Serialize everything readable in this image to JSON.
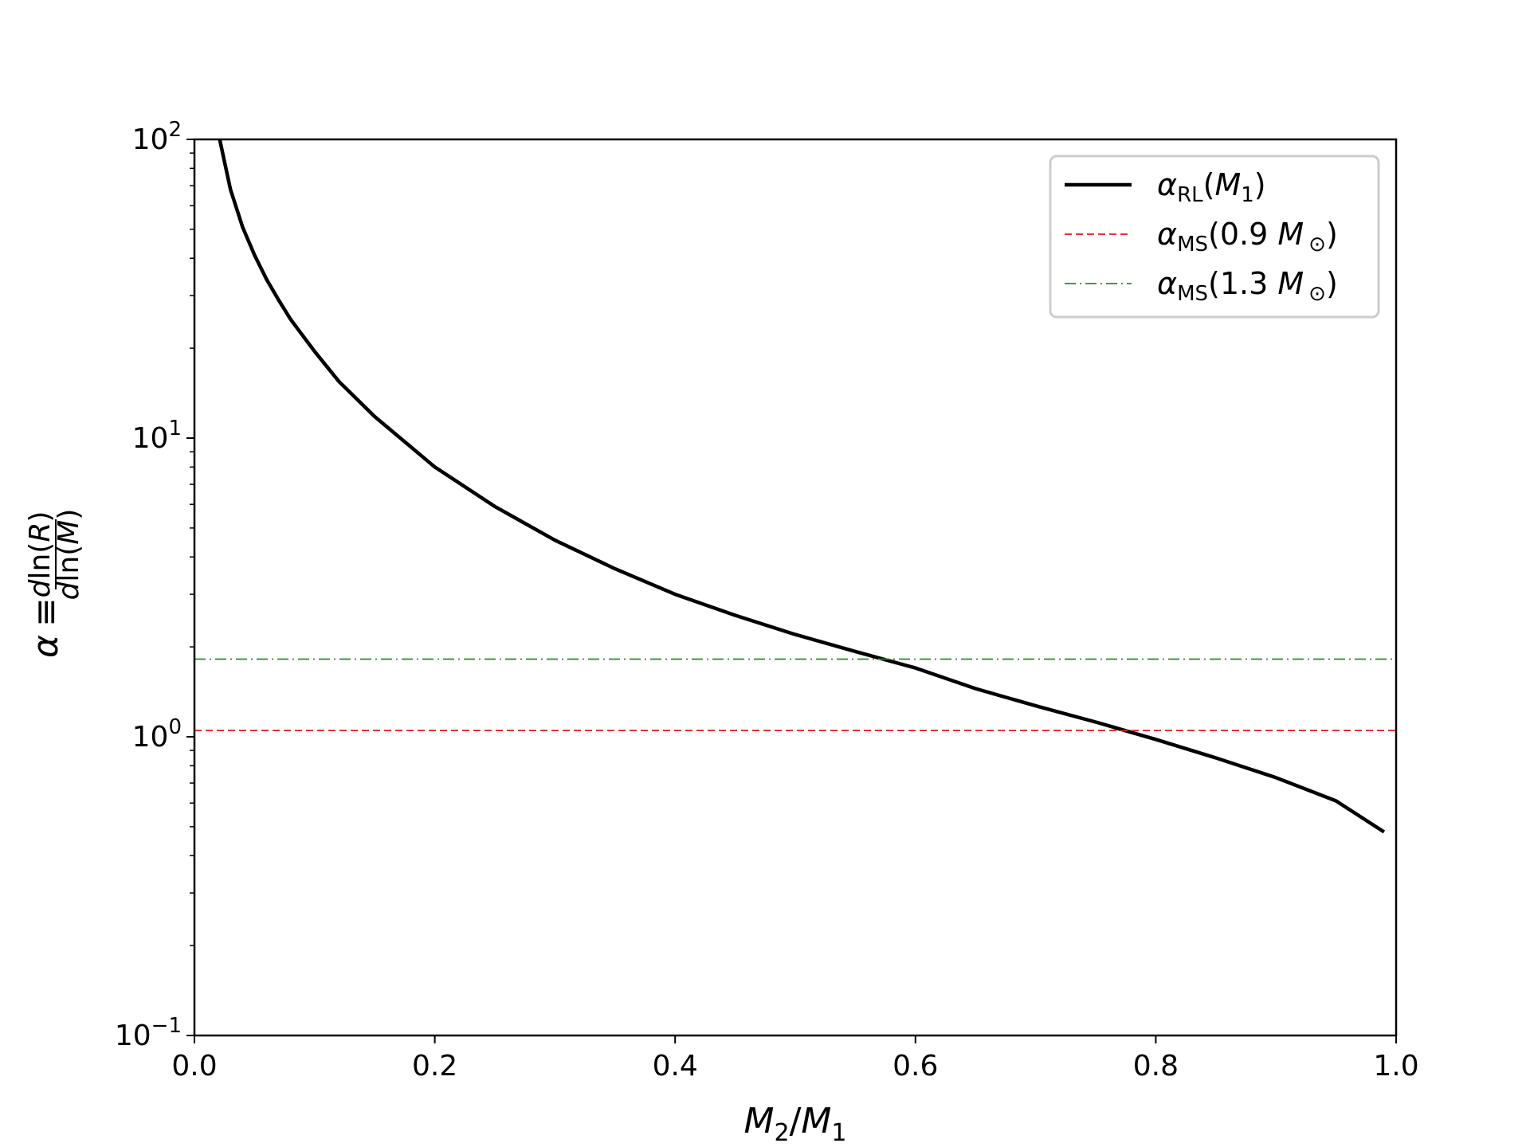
{
  "chart_data": {
    "type": "line",
    "title": "",
    "xlabel": "M_2/M_1",
    "ylabel": "α ≡ dln(R)/dln(M)",
    "xlim": [
      0.0,
      1.0
    ],
    "ylim": [
      0.1,
      100
    ],
    "yscale": "log",
    "grid": false,
    "legend_position": "top-right",
    "x_ticks": [
      "0.0",
      "0.2",
      "0.4",
      "0.6",
      "0.8",
      "1.0"
    ],
    "y_ticks": [
      {
        "value": 100,
        "base": "10",
        "exp": "2"
      },
      {
        "value": 10,
        "base": "10",
        "exp": "1"
      },
      {
        "value": 1,
        "base": "10",
        "exp": "0"
      },
      {
        "value": 0.1,
        "base": "10",
        "exp": "−1"
      }
    ],
    "series": [
      {
        "name": "α_RL(M_1)",
        "legend": {
          "sym": "α",
          "sub": "RL",
          "tail": "(M",
          "tail_sub": "1",
          "end": ")"
        },
        "color": "#000000",
        "style": "solid",
        "x": [
          0.021,
          0.03,
          0.04,
          0.05,
          0.06,
          0.07,
          0.08,
          0.1,
          0.12,
          0.15,
          0.2,
          0.25,
          0.3,
          0.35,
          0.4,
          0.45,
          0.5,
          0.55,
          0.6,
          0.65,
          0.7,
          0.75,
          0.8,
          0.85,
          0.9,
          0.95,
          0.99
        ],
        "y": [
          100,
          68,
          51,
          41,
          34,
          29,
          25,
          19.5,
          15.5,
          11.8,
          8.0,
          5.9,
          4.55,
          3.65,
          3.0,
          2.55,
          2.2,
          1.93,
          1.7,
          1.45,
          1.27,
          1.12,
          0.98,
          0.85,
          0.73,
          0.61,
          0.48
        ]
      },
      {
        "name": "α_MS(0.9 M_⊙)",
        "legend": {
          "sym": "α",
          "sub": "MS",
          "tail": "(0.9 M",
          "tail_sub": "⊙",
          "end": ")"
        },
        "color": "#e31a1c",
        "style": "dashed",
        "x": [
          0.0,
          1.0
        ],
        "y": [
          1.05,
          1.05
        ]
      },
      {
        "name": "α_MS(1.3 M_⊙)",
        "legend": {
          "sym": "α",
          "sub": "MS",
          "tail": "(1.3 M",
          "tail_sub": "⊙",
          "end": ")"
        },
        "color": "#2a8a2a",
        "style": "dashdot",
        "x": [
          0.0,
          1.0
        ],
        "y": [
          1.82,
          1.82
        ]
      }
    ]
  }
}
